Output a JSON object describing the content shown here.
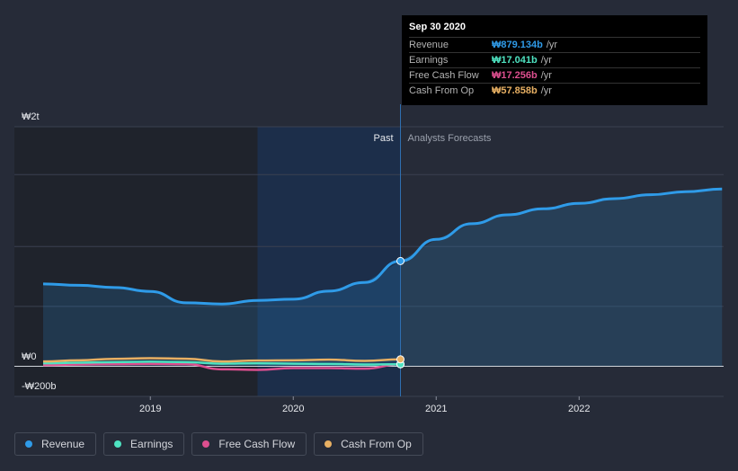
{
  "tooltip": {
    "date": "Sep 30 2020",
    "rows": [
      {
        "label": "Revenue",
        "value": "₩879.134b",
        "unit": "/yr",
        "color": "#2f9be8"
      },
      {
        "label": "Earnings",
        "value": "₩17.041b",
        "unit": "/yr",
        "color": "#4ee3c1"
      },
      {
        "label": "Free Cash Flow",
        "value": "₩17.256b",
        "unit": "/yr",
        "color": "#dd4f8f"
      },
      {
        "label": "Cash From Op",
        "value": "₩57.858b",
        "unit": "/yr",
        "color": "#e8b063"
      }
    ]
  },
  "legend": [
    {
      "label": "Revenue",
      "color": "#2f9be8"
    },
    {
      "label": "Earnings",
      "color": "#4ee3c1"
    },
    {
      "label": "Free Cash Flow",
      "color": "#dd4f8f"
    },
    {
      "label": "Cash From Op",
      "color": "#e8b063"
    }
  ],
  "chart_data": {
    "type": "area",
    "ylim": [
      -200,
      2000
    ],
    "xlim": [
      2018.25,
      2023.0
    ],
    "y_tick_labels": [
      {
        "label": "₩2t",
        "value": 2000
      },
      {
        "label": "₩0",
        "value": 0
      },
      {
        "label": "-₩200b",
        "value": -200
      }
    ],
    "x_ticks": [
      {
        "label": "2019",
        "value": 2019
      },
      {
        "label": "2020",
        "value": 2020
      },
      {
        "label": "2021",
        "value": 2021
      },
      {
        "label": "2022",
        "value": 2022
      }
    ],
    "grid_values": [
      0,
      500,
      1000,
      1600
    ],
    "past_label": "Past",
    "forecast_label": "Analysts Forecasts",
    "past_divider": 2020.75,
    "highlight_start": 2019.75,
    "series": [
      {
        "name": "Revenue",
        "color": "#2f9be8",
        "filled": true,
        "points": [
          [
            2018.25,
            688
          ],
          [
            2018.5,
            676
          ],
          [
            2018.75,
            658
          ],
          [
            2019.0,
            625
          ],
          [
            2019.25,
            530
          ],
          [
            2019.5,
            520
          ],
          [
            2019.75,
            550
          ],
          [
            2020.0,
            560
          ],
          [
            2020.25,
            628
          ],
          [
            2020.5,
            700
          ],
          [
            2020.75,
            879
          ],
          [
            2021.0,
            1060
          ],
          [
            2021.25,
            1190
          ],
          [
            2021.5,
            1265
          ],
          [
            2021.75,
            1315
          ],
          [
            2022.0,
            1360
          ],
          [
            2022.25,
            1400
          ],
          [
            2022.5,
            1432
          ],
          [
            2022.75,
            1458
          ],
          [
            2023.0,
            1480
          ]
        ]
      },
      {
        "name": "Cash From Op",
        "color": "#e8b063",
        "filled": false,
        "points": [
          [
            2018.25,
            40
          ],
          [
            2018.5,
            50
          ],
          [
            2018.75,
            62
          ],
          [
            2019.0,
            68
          ],
          [
            2019.25,
            63
          ],
          [
            2019.5,
            40
          ],
          [
            2019.75,
            48
          ],
          [
            2020.0,
            50
          ],
          [
            2020.25,
            55
          ],
          [
            2020.5,
            45
          ],
          [
            2020.75,
            57.858
          ]
        ]
      },
      {
        "name": "Earnings",
        "color": "#4ee3c1",
        "filled": false,
        "points": [
          [
            2018.25,
            25
          ],
          [
            2018.5,
            30
          ],
          [
            2018.75,
            35
          ],
          [
            2019.0,
            38
          ],
          [
            2019.25,
            35
          ],
          [
            2019.5,
            22
          ],
          [
            2019.75,
            24
          ],
          [
            2020.0,
            22
          ],
          [
            2020.25,
            20
          ],
          [
            2020.5,
            15
          ],
          [
            2020.75,
            17.041
          ]
        ]
      },
      {
        "name": "Free Cash Flow",
        "color": "#dd4f8f",
        "filled": false,
        "points": [
          [
            2018.25,
            10
          ],
          [
            2018.5,
            15
          ],
          [
            2018.75,
            18
          ],
          [
            2019.0,
            20
          ],
          [
            2019.25,
            18
          ],
          [
            2019.5,
            -25
          ],
          [
            2019.75,
            -30
          ],
          [
            2020.0,
            -15
          ],
          [
            2020.25,
            -15
          ],
          [
            2020.5,
            -20
          ],
          [
            2020.75,
            17.256
          ]
        ]
      }
    ]
  }
}
